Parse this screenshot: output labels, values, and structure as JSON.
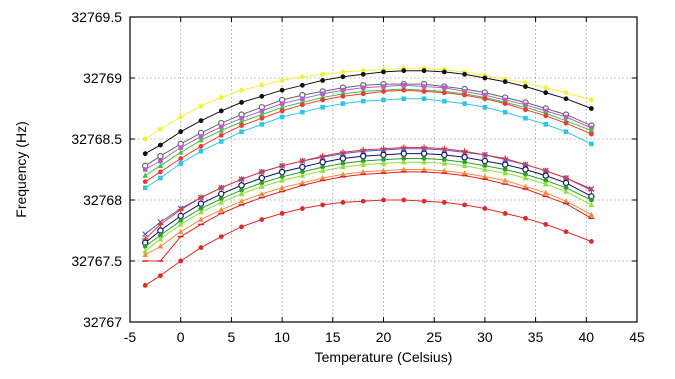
{
  "chart_data": {
    "type": "line",
    "title": "",
    "xlabel": "Temperature (Celsius)",
    "ylabel": "Frequency (Hz)",
    "xlim": [
      -5,
      45
    ],
    "ylim": [
      32767,
      32769.5
    ],
    "grid": true,
    "legend": "none",
    "x": [
      -3.5,
      -2,
      0,
      2,
      4,
      6,
      8,
      10,
      12,
      14,
      16,
      18,
      20,
      22,
      24,
      26,
      28,
      30,
      32,
      34,
      36,
      38,
      40.5
    ],
    "x_ticks": [
      -5,
      0,
      5,
      10,
      15,
      20,
      25,
      30,
      35,
      40,
      45
    ],
    "x_tick_labels": [
      "-5",
      "0",
      "5",
      "10",
      "15",
      "20",
      "25",
      "30",
      "35",
      "40",
      "45"
    ],
    "y_ticks": [
      32767,
      32767.5,
      32768,
      32768.5,
      32769,
      32769.5
    ],
    "y_tick_labels": [
      "32767",
      "32767.5",
      "32768",
      "32768.5",
      "32769",
      "32769.5"
    ],
    "series": [
      {
        "color": "#f2f23a",
        "marker": "circle",
        "values": [
          32768.5,
          32768.58,
          32768.68,
          32768.77,
          32768.84,
          32768.9,
          32768.94,
          32768.98,
          32769.01,
          32769.03,
          32769.05,
          32769.06,
          32769.07,
          32769.08,
          32769.08,
          32769.07,
          32769.05,
          32769.02,
          32768.99,
          32768.96,
          32768.92,
          32768.88,
          32768.82
        ]
      },
      {
        "color": "#111111",
        "marker": "circle",
        "values": [
          32768.38,
          32768.45,
          32768.56,
          32768.65,
          32768.73,
          32768.8,
          32768.85,
          32768.9,
          32768.94,
          32768.98,
          32769.01,
          32769.03,
          32769.05,
          32769.06,
          32769.06,
          32769.05,
          32769.03,
          32769.0,
          32768.97,
          32768.93,
          32768.88,
          32768.83,
          32768.75
        ]
      },
      {
        "color": "#666666",
        "marker": "open-circle",
        "values": [
          32768.28,
          32768.36,
          32768.46,
          32768.55,
          32768.63,
          32768.7,
          32768.76,
          32768.82,
          32768.86,
          32768.89,
          32768.92,
          32768.94,
          32768.95,
          32768.95,
          32768.95,
          32768.93,
          32768.91,
          32768.88,
          32768.84,
          32768.8,
          32768.75,
          32768.7,
          32768.61
        ]
      },
      {
        "color": "#b85cd6",
        "marker": "square",
        "values": [
          32768.25,
          32768.32,
          32768.43,
          32768.52,
          32768.6,
          32768.67,
          32768.73,
          32768.79,
          32768.83,
          32768.87,
          32768.9,
          32768.92,
          32768.93,
          32768.94,
          32768.93,
          32768.92,
          32768.89,
          32768.86,
          32768.82,
          32768.78,
          32768.73,
          32768.68,
          32768.59
        ]
      },
      {
        "color": "#3cc43c",
        "marker": "triangle",
        "values": [
          32768.2,
          32768.28,
          32768.39,
          32768.49,
          32768.57,
          32768.64,
          32768.7,
          32768.76,
          32768.8,
          32768.84,
          32768.87,
          32768.89,
          32768.9,
          32768.91,
          32768.9,
          32768.89,
          32768.87,
          32768.84,
          32768.8,
          32768.76,
          32768.71,
          32768.65,
          32768.57
        ]
      },
      {
        "color": "#f03a3a",
        "marker": "circle",
        "values": [
          32768.15,
          32768.23,
          32768.34,
          32768.44,
          32768.53,
          32768.61,
          32768.67,
          32768.73,
          32768.78,
          32768.82,
          32768.85,
          32768.87,
          32768.89,
          32768.9,
          32768.89,
          32768.88,
          32768.86,
          32768.83,
          32768.79,
          32768.74,
          32768.69,
          32768.63,
          32768.54
        ]
      },
      {
        "color": "#2fc6e6",
        "marker": "square",
        "values": [
          32768.1,
          32768.18,
          32768.3,
          32768.4,
          32768.48,
          32768.56,
          32768.62,
          32768.68,
          32768.72,
          32768.76,
          32768.79,
          32768.81,
          32768.82,
          32768.83,
          32768.83,
          32768.81,
          32768.79,
          32768.76,
          32768.72,
          32768.67,
          32768.62,
          32768.56,
          32768.46
        ]
      },
      {
        "color": "#5a5ad8",
        "marker": "x",
        "values": [
          32767.72,
          32767.82,
          32767.93,
          32768.02,
          32768.1,
          32768.17,
          32768.23,
          32768.28,
          32768.32,
          32768.35,
          32768.38,
          32768.4,
          32768.41,
          32768.42,
          32768.42,
          32768.41,
          32768.39,
          32768.37,
          32768.33,
          32768.29,
          32768.24,
          32768.18,
          32768.09
        ]
      },
      {
        "color": "#e23636",
        "marker": "plus",
        "values": [
          32767.68,
          32767.8,
          32767.92,
          32768.02,
          32768.1,
          32768.17,
          32768.23,
          32768.28,
          32768.32,
          32768.36,
          32768.39,
          32768.41,
          32768.42,
          32768.43,
          32768.43,
          32768.42,
          32768.4,
          32768.37,
          32768.34,
          32768.29,
          32768.24,
          32768.18,
          32768.08
        ]
      },
      {
        "color": "#101060",
        "marker": "open-circle",
        "values": [
          32767.65,
          32767.75,
          32767.87,
          32767.97,
          32768.05,
          32768.12,
          32768.18,
          32768.23,
          32768.27,
          32768.31,
          32768.34,
          32768.36,
          32768.37,
          32768.38,
          32768.38,
          32768.37,
          32768.35,
          32768.32,
          32768.29,
          32768.25,
          32768.2,
          32768.14,
          32768.03
        ]
      },
      {
        "color": "#2d9e2d",
        "marker": "circle",
        "values": [
          32767.62,
          32767.71,
          32767.83,
          32767.93,
          32768.01,
          32768.08,
          32768.14,
          32768.19,
          32768.23,
          32768.27,
          32768.3,
          32768.32,
          32768.33,
          32768.34,
          32768.34,
          32768.33,
          32768.31,
          32768.28,
          32768.25,
          32768.21,
          32768.16,
          32768.1,
          32768.0
        ]
      },
      {
        "color": "#8ee03c",
        "marker": "triangle",
        "values": [
          32767.58,
          32767.68,
          32767.8,
          32767.9,
          32767.98,
          32768.05,
          32768.11,
          32768.16,
          32768.2,
          32768.24,
          32768.27,
          32768.29,
          32768.3,
          32768.31,
          32768.31,
          32768.3,
          32768.28,
          32768.25,
          32768.22,
          32768.18,
          32768.13,
          32768.07,
          32767.96
        ]
      },
      {
        "color": "#f08c3c",
        "marker": "triangle",
        "values": [
          32767.55,
          32767.62,
          32767.74,
          32767.84,
          32767.92,
          32767.99,
          32768.05,
          32768.1,
          32768.14,
          32768.18,
          32768.21,
          32768.23,
          32768.24,
          32768.25,
          32768.25,
          32768.24,
          32768.22,
          32768.19,
          32768.16,
          32768.11,
          32768.06,
          32767.99,
          32767.88
        ]
      },
      {
        "color": "#e02020",
        "marker": "dash",
        "values": [
          32767.5,
          32767.5,
          32767.7,
          32767.8,
          32767.89,
          32767.96,
          32768.02,
          32768.07,
          32768.12,
          32768.16,
          32768.19,
          32768.21,
          32768.22,
          32768.23,
          32768.23,
          32768.22,
          32768.2,
          32768.17,
          32768.13,
          32768.09,
          32768.03,
          32767.97,
          32767.85
        ]
      },
      {
        "color": "#dd2a2a",
        "marker": "circle",
        "values": [
          32767.3,
          32767.38,
          32767.5,
          32767.61,
          32767.7,
          32767.78,
          32767.84,
          32767.89,
          32767.93,
          32767.96,
          32767.98,
          32767.99,
          32768.0,
          32768.0,
          32767.99,
          32767.98,
          32767.96,
          32767.93,
          32767.89,
          32767.85,
          32767.8,
          32767.74,
          32767.66
        ]
      }
    ]
  }
}
